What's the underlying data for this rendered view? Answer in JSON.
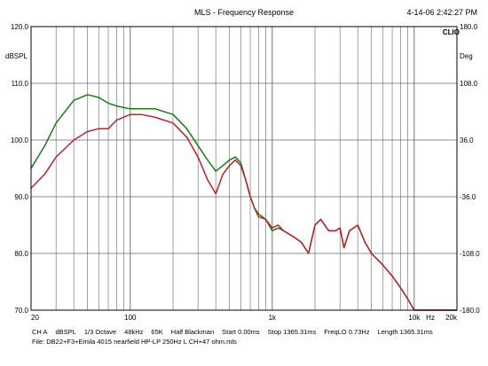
{
  "header": {
    "title": "MLS - Frequency Response",
    "timestamp": "4-14-06 2:42:27 PM",
    "brand": "CLIO"
  },
  "chart_data": {
    "type": "line",
    "title": "MLS - Frequency Response",
    "x_scale": "log",
    "xlim": [
      20,
      20000
    ],
    "ylim_left": [
      70,
      120
    ],
    "ylim_right": [
      -180,
      180
    ],
    "ylabel_left": "dBSPL",
    "ylabel_right": "Deg",
    "xlabel": "Hz",
    "grid": true,
    "x_tick_labels": [
      {
        "value": 20,
        "label": "20"
      },
      {
        "value": 100,
        "label": "100"
      },
      {
        "value": 1000,
        "label": "1k"
      },
      {
        "value": 10000,
        "label": "10k"
      },
      {
        "value": 20000,
        "label": "20k"
      }
    ],
    "y_left_tick_labels": [
      {
        "value": 70,
        "label": "70.0"
      },
      {
        "value": 80,
        "label": "80.0"
      },
      {
        "value": 90,
        "label": "90.0"
      },
      {
        "value": 100,
        "label": "100.0"
      },
      {
        "value": 110,
        "label": "110.0"
      },
      {
        "value": 120,
        "label": "120.0"
      }
    ],
    "y_right_tick_labels": [
      {
        "value": -180,
        "label": "-180.0"
      },
      {
        "value": -108,
        "label": "-108.0"
      },
      {
        "value": -36,
        "label": "-36.0"
      },
      {
        "value": 36,
        "label": "36.0"
      },
      {
        "value": 108,
        "label": "108.0"
      },
      {
        "value": 180,
        "label": "180.0"
      }
    ],
    "series": [
      {
        "color": "#1a7a1a",
        "x": [
          20,
          25,
          30,
          40,
          50,
          60,
          70,
          80,
          100,
          120,
          150,
          200,
          250,
          300,
          350,
          400,
          450,
          500,
          550,
          600,
          650,
          700,
          750,
          800,
          900,
          1000,
          1100,
          1200,
          1400,
          1600,
          1800,
          2000,
          2200,
          2500,
          2800,
          3000,
          3200,
          3500,
          4000,
          4500,
          5000,
          6000,
          7000,
          8000,
          9000,
          10000,
          20000
        ],
        "y": [
          95,
          99,
          103,
          107,
          108,
          107.5,
          106.5,
          106,
          105.5,
          105.5,
          105.5,
          104.5,
          102,
          99,
          96.5,
          94.5,
          95.5,
          96.5,
          97,
          96,
          93,
          90,
          88,
          87,
          86,
          84,
          84.5,
          84,
          83,
          82,
          80,
          85,
          86,
          84,
          84,
          84.5,
          81,
          84,
          85,
          82,
          80,
          78,
          76,
          74,
          72,
          70,
          70
        ]
      },
      {
        "color": "#c0202a",
        "x": [
          20,
          25,
          30,
          40,
          50,
          60,
          70,
          80,
          100,
          120,
          150,
          200,
          250,
          300,
          350,
          400,
          450,
          500,
          550,
          600,
          650,
          700,
          750,
          800,
          900,
          1000,
          1100,
          1200,
          1400,
          1600,
          1800,
          2000,
          2200,
          2500,
          2800,
          3000,
          3200,
          3500,
          4000,
          4500,
          5000,
          6000,
          7000,
          8000,
          9000,
          10000,
          20000
        ],
        "y": [
          91.5,
          94,
          97,
          100,
          101.5,
          102,
          102,
          103.5,
          104.5,
          104.5,
          104,
          103,
          100.5,
          97,
          93,
          90.5,
          94,
          95.5,
          96.5,
          95.5,
          93,
          90,
          88,
          86.5,
          86,
          84.5,
          85,
          84,
          83,
          82,
          80,
          85,
          86,
          84,
          84,
          84.5,
          81,
          84,
          85,
          82,
          80,
          78,
          76,
          74,
          72,
          70,
          70
        ]
      }
    ]
  },
  "footer": {
    "line1": [
      "CH A",
      "dBSPL",
      "1/3 Octave",
      "48kHz",
      "65K",
      "Half Blackman",
      "Start 0.00ms",
      "Stop 1365.31ms",
      "FreqLO 0.73Hz",
      "Length 1365.31ms"
    ],
    "line2": "File: DB22+F3+Emila 4015 nearfield HP-LP 250Hz L CH+47 ohm.mls"
  }
}
